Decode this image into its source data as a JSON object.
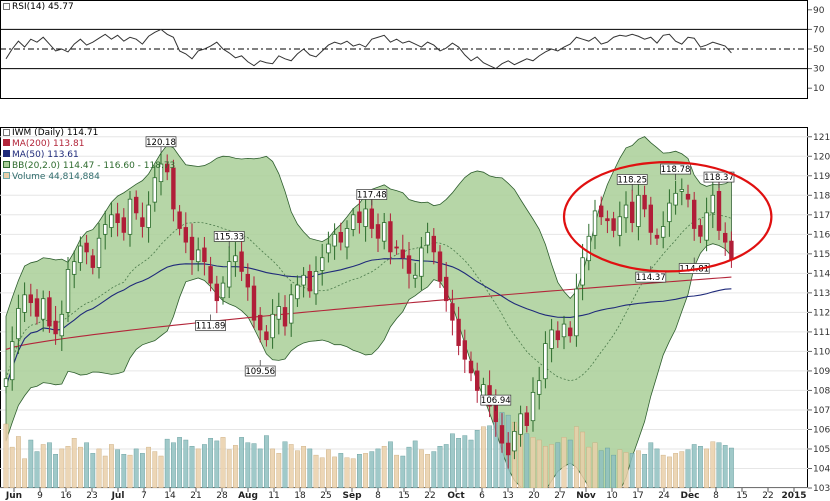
{
  "legend": {
    "rsi": "RSI(14) 45.77",
    "ticker": "IWM (Daily) 114.71",
    "ma200": "MA(200) 113.81",
    "ma50": "MA(50) 113.61",
    "bb": "BB(20,2.0) 114.47 - 116.60 - 118.73",
    "volume": "Volume 44,814,884"
  },
  "colors": {
    "up_candle": "#2b6b2b",
    "down_candle": "#b01e38",
    "bollinger_fill": "#a9cf98",
    "ma200": "#b3263a",
    "ma50": "#1f2a7a",
    "volume_up": "#e9cfa9",
    "volume_down": "#8fc0bf",
    "annotation_circle": "#e01010"
  },
  "chart_data": [
    {
      "type": "line",
      "name": "rsi-panel",
      "title": "RSI(14) 45.77",
      "ylim": [
        0,
        100
      ],
      "y_ticks": [
        10,
        30,
        50,
        70,
        90
      ],
      "reference_levels": [
        30,
        50,
        70
      ],
      "series": [
        {
          "name": "RSI(14)",
          "values": [
            40,
            50,
            58,
            52,
            60,
            57,
            62,
            55,
            48,
            50,
            47,
            55,
            60,
            54,
            57,
            61,
            65,
            60,
            64,
            58,
            62,
            60,
            55,
            63,
            67,
            70,
            65,
            62,
            48,
            45,
            40,
            48,
            50,
            53,
            57,
            50,
            46,
            41,
            43,
            37,
            33,
            38,
            36,
            35,
            43,
            40,
            38,
            45,
            50,
            44,
            42,
            48,
            54,
            57,
            55,
            58,
            53,
            55,
            52,
            60,
            62,
            64,
            57,
            60,
            56,
            58,
            55,
            52,
            57,
            54,
            48,
            51,
            56,
            52,
            44,
            38,
            42,
            36,
            33,
            30,
            35,
            38,
            34,
            37,
            40,
            38,
            43,
            47,
            50,
            48,
            52,
            55,
            62,
            60,
            58,
            62,
            55,
            57,
            62,
            64,
            63,
            65,
            63,
            60,
            62,
            56,
            64,
            65,
            58,
            55,
            62,
            61,
            52,
            54,
            57,
            55,
            53,
            46
          ]
        }
      ]
    },
    {
      "type": "candlestick",
      "name": "price-panel",
      "title": "IWM (Daily) 114.71",
      "ylim": [
        103,
        121.5
      ],
      "y_ticks": [
        103,
        104,
        105,
        106,
        107,
        108,
        109,
        110,
        111,
        112,
        113,
        114,
        115,
        116,
        117,
        118,
        119,
        120,
        121
      ],
      "x_tick_labels": [
        "Jun",
        "9",
        "16",
        "23",
        "Jul",
        "7",
        "14",
        "21",
        "28",
        "Aug",
        "11",
        "18",
        "25",
        "Sep",
        "8",
        "15",
        "22",
        "Oct",
        "6",
        "13",
        "20",
        "27",
        "Nov",
        "10",
        "17",
        "24",
        "Dec",
        "8",
        "15",
        "22",
        "2015"
      ],
      "x_tick_label_prefixes": [
        "",
        "",
        "",
        "",
        "",
        "",
        "",
        "",
        "",
        "",
        "",
        "",
        "",
        "",
        "",
        "",
        "",
        "",
        "",
        "",
        "",
        "",
        "",
        "",
        "",
        "",
        "",
        "",
        "",
        "",
        ""
      ],
      "close": [
        108.6,
        110.5,
        112.2,
        112.9,
        112.5,
        111.8,
        112.7,
        111.3,
        110.9,
        111.9,
        114.2,
        114.6,
        115.4,
        115.1,
        114.3,
        115.8,
        116.5,
        117.0,
        116.6,
        116.1,
        117.8,
        117.1,
        116.4,
        117.5,
        118.9,
        119.6,
        119.2,
        117.3,
        116.3,
        115.6,
        114.7,
        115.2,
        114.6,
        113.5,
        112.6,
        113.5,
        114.6,
        114.9,
        114.1,
        113.3,
        111.6,
        111.1,
        110.6,
        111.9,
        112.3,
        111.3,
        112.9,
        113.4,
        113.9,
        113.1,
        114.1,
        114.8,
        115.5,
        116.0,
        115.6,
        116.3,
        117.0,
        116.6,
        117.3,
        116.3,
        115.8,
        116.6,
        115.1,
        115.3,
        114.8,
        114.0,
        113.9,
        115.3,
        116.1,
        115.1,
        113.6,
        112.6,
        111.6,
        110.3,
        109.6,
        108.9,
        108.0,
        108.3,
        107.2,
        106.4,
        105.3,
        104.7,
        105.9,
        106.8,
        106.2,
        107.9,
        108.5,
        110.4,
        111.1,
        110.6,
        111.4,
        110.8,
        113.2,
        114.8,
        115.9,
        117.2,
        116.9,
        116.7,
        116.2,
        116.9,
        117.5,
        116.6,
        118.0,
        117.3,
        116.1,
        115.8,
        116.4,
        117.6,
        118.1,
        118.3,
        117.8,
        116.3,
        115.9,
        117.1,
        118.0,
        116.2,
        115.6,
        114.7
      ],
      "volume_millions": [
        72,
        46,
        58,
        33,
        54,
        41,
        49,
        51,
        38,
        44,
        47,
        56,
        46,
        51,
        39,
        44,
        36,
        49,
        43,
        38,
        37,
        44,
        39,
        46,
        41,
        36,
        55,
        51,
        57,
        54,
        47,
        44,
        49,
        56,
        53,
        57,
        43,
        48,
        57,
        51,
        50,
        44,
        59,
        44,
        39,
        52,
        49,
        42,
        47,
        44,
        37,
        34,
        43,
        35,
        39,
        34,
        33,
        38,
        39,
        41,
        44,
        47,
        52,
        37,
        36,
        46,
        53,
        43,
        38,
        41,
        47,
        49,
        61,
        56,
        59,
        54,
        65,
        69,
        70,
        78,
        85,
        82,
        74,
        69,
        61,
        57,
        54,
        47,
        49,
        51,
        57,
        54,
        69,
        63,
        46,
        51,
        42,
        45,
        37,
        43,
        40,
        39,
        42,
        38,
        51,
        44,
        37,
        35,
        39,
        41,
        43,
        49,
        47,
        44,
        52,
        51,
        48,
        45
      ],
      "series": [
        {
          "name": "MA(200)",
          "last": 113.81
        },
        {
          "name": "MA(50)",
          "last": 113.61
        },
        {
          "name": "BB(20,2.0)",
          "lower": 114.47,
          "mid": 116.6,
          "upper": 118.73
        },
        {
          "name": "Volume",
          "last": 44814884
        }
      ],
      "annotations": [
        {
          "label": "120.18",
          "index": 25,
          "value": 120.18
        },
        {
          "label": "115.33",
          "index": 36,
          "value": 115.33
        },
        {
          "label": "111.89",
          "index": 33,
          "value": 111.89
        },
        {
          "label": "109.56",
          "index": 41,
          "value": 109.56
        },
        {
          "label": "117.48",
          "index": 59,
          "value": 117.48
        },
        {
          "label": "106.94",
          "index": 79,
          "value": 106.94
        },
        {
          "label": "118.25",
          "index": 101,
          "value": 118.25
        },
        {
          "label": "114.37",
          "index": 104,
          "value": 114.37
        },
        {
          "label": "118.78",
          "index": 108,
          "value": 118.78
        },
        {
          "label": "114.81",
          "index": 111,
          "value": 114.81
        },
        {
          "label": "118.37",
          "index": 115,
          "value": 118.37
        }
      ]
    }
  ]
}
